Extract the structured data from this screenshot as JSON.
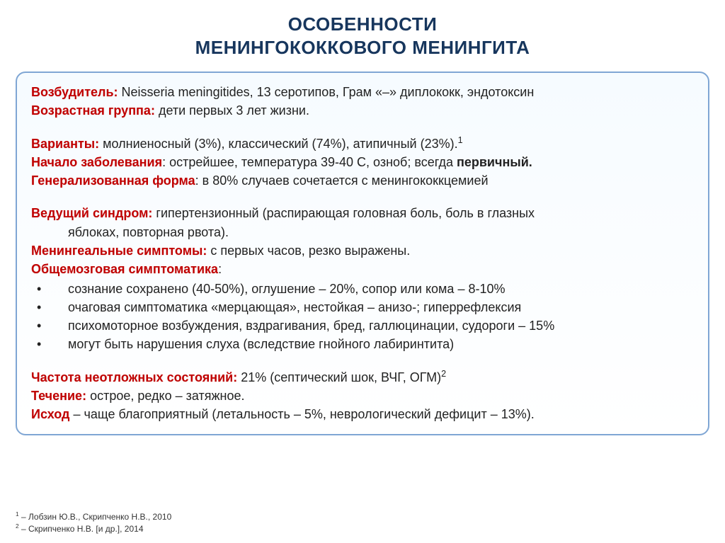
{
  "title": {
    "line1": "ОСОБЕННОСТИ",
    "line2": "МЕНИНГОКОККОВОГО МЕНИНГИТА"
  },
  "panel_colors": {
    "border": "#7fa6d4",
    "label": "#c00000",
    "title_color": "#17365d"
  },
  "content": {
    "pathogen_label": "Возбудитель:",
    "pathogen_text": " Neisseria meningitides, 13 серотипов, Грам «–» диплококк, эндотоксин",
    "age_label": "Возрастная группа:",
    "age_text": " дети первых 3 лет жизни.",
    "variants_label": "Варианты:",
    "variants_text": " молниеносный (3%), классический (74%), атипичный (23%).",
    "variants_sup": "1",
    "onset_label": "Начало заболевания",
    "onset_text": ": острейшее, температура 39-40 С, озноб; всегда ",
    "onset_bold": "первичный.",
    "general_label": "Генерализованная форма",
    "general_text": ": в 80% случаев сочетается с менингококкцемией",
    "leading_label": "Ведущий синдром:",
    "leading_text": " гипертензионный  (распирающая головная боль, боль в глазных",
    "leading_text2": "яблоках, повторная рвота).",
    "mening_label": "Менингеальные симптомы:",
    "mening_text": " с первых часов, резко выражены.",
    "cerebral_label": "Общемозговая симптоматика",
    "cerebral_colon": ":",
    "bullets": [
      "сознание сохранено (40-50%), оглушение – 20%, сопор или кома – 8-10%",
      "очаговая симптоматика «мерцающая», нестойкая – анизо-; гиперрефлексия",
      "психомоторное возбуждения, вздрагивания, бред, галлюцинации, судороги – 15%",
      "могут быть нарушения слуха (вследствие гнойного лабиринтита)"
    ],
    "emerg_label": "Частота неотложных состояний:",
    "emerg_text": " 21% (септический шок, ВЧГ, ОГМ)",
    "emerg_sup": "2",
    "course_label": "Течение:",
    "course_text": " острое, редко – затяжное.",
    "outcome_label": "Исход",
    "outcome_text": " – чаще благоприятный (летальность – 5%, неврологический дефицит – 13%)."
  },
  "refs": {
    "r1_sup": "1",
    "r1_text": " –  Лобзин Ю.В., Скрипченко Н.В., 2010",
    "r2_sup": "2",
    "r2_text": " – Скрипченко Н.В. [и др.], 2014"
  }
}
